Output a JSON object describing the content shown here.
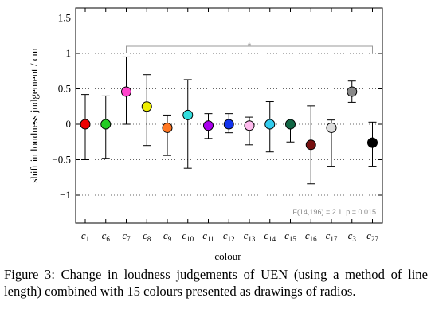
{
  "chart_data": {
    "type": "scatter",
    "xlabel": "colour",
    "ylabel": "shift in loudness judgement / cm",
    "ylim": [
      -1.5,
      1.55
    ],
    "yticks": [
      1.5,
      1,
      0.5,
      0,
      -0.5,
      -1
    ],
    "ytick_labels": [
      "1.5",
      "1",
      "0.5",
      "0",
      "−0.5",
      "−1"
    ],
    "grid": true,
    "annotation": "F(14,196) = 2.1;  p = 0.015",
    "significance": {
      "from": "c7",
      "to": "c27",
      "mark": "*"
    },
    "categories": [
      {
        "base": "c",
        "sub": "1"
      },
      {
        "base": "c",
        "sub": "6"
      },
      {
        "base": "c",
        "sub": "7"
      },
      {
        "base": "c",
        "sub": "8"
      },
      {
        "base": "c",
        "sub": "9"
      },
      {
        "base": "c",
        "sub": "10"
      },
      {
        "base": "c",
        "sub": "11"
      },
      {
        "base": "c",
        "sub": "12"
      },
      {
        "base": "c",
        "sub": "13"
      },
      {
        "base": "c",
        "sub": "14"
      },
      {
        "base": "c",
        "sub": "15"
      },
      {
        "base": "c",
        "sub": "16"
      },
      {
        "base": "c",
        "sub": "17"
      },
      {
        "base": "c",
        "sub": "3"
      },
      {
        "base": "c",
        "sub": "27"
      }
    ],
    "means": [
      0.0,
      0.0,
      0.46,
      0.25,
      -0.05,
      0.13,
      -0.02,
      0.0,
      -0.02,
      0.0,
      0.0,
      -0.29,
      -0.05,
      0.46,
      -0.26
    ],
    "lower": [
      -0.5,
      -0.48,
      0.0,
      -0.3,
      -0.44,
      -0.62,
      -0.2,
      -0.12,
      -0.29,
      -0.39,
      -0.25,
      -0.84,
      -0.6,
      0.31,
      -0.6
    ],
    "upper": [
      0.42,
      0.4,
      0.95,
      0.7,
      0.13,
      0.63,
      0.15,
      0.15,
      0.1,
      0.32,
      0.0,
      0.26,
      0.06,
      0.61,
      0.03
    ],
    "colors": [
      "#ee0000",
      "#22cc22",
      "#ff44cc",
      "#eeee00",
      "#ff7722",
      "#33dddd",
      "#aa00ee",
      "#1133ee",
      "#ffbbee",
      "#33ccee",
      "#116644",
      "#771111",
      "#dddddd",
      "#888888",
      "#000000"
    ]
  },
  "caption": "Figure 3: Change in loudness judgements of UEN (using a method of line length) combined with 15 colours presented as drawings of radios."
}
